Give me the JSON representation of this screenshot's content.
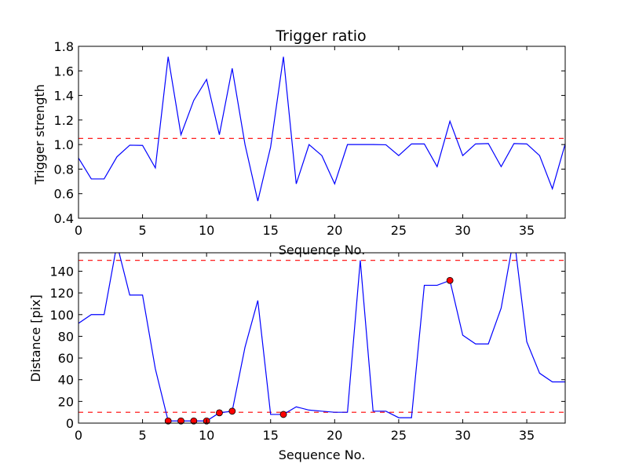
{
  "chart_data": [
    {
      "type": "line",
      "title": "Trigger ratio",
      "xlabel": "Sequence No.",
      "ylabel": "Trigger strength",
      "xlim": [
        0,
        38
      ],
      "ylim": [
        0.4,
        1.8
      ],
      "xticks": [
        0,
        5,
        10,
        15,
        20,
        25,
        30,
        35
      ],
      "yticks": [
        0.4,
        0.6,
        0.8,
        1.0,
        1.2,
        1.4,
        1.6,
        1.8
      ],
      "xtick_labels": [
        "0",
        "5",
        "10",
        "15",
        "20",
        "25",
        "30",
        "35"
      ],
      "ytick_labels": [
        "0.4",
        "0.6",
        "0.8",
        "1.0",
        "1.2",
        "1.4",
        "1.6",
        "1.8"
      ],
      "series": [
        {
          "color": "#0000ff",
          "x": [
            0,
            1,
            2,
            3,
            4,
            5,
            6,
            7,
            8,
            9,
            10,
            11,
            12,
            13,
            14,
            15,
            16,
            17,
            18,
            19,
            20,
            21,
            22,
            23,
            24,
            25,
            26,
            27,
            28,
            29,
            30,
            31,
            32,
            33,
            34,
            35,
            36,
            37,
            38
          ],
          "y": [
            0.89,
            0.72,
            0.72,
            0.9,
            0.995,
            0.993,
            0.81,
            1.715,
            1.08,
            1.36,
            1.53,
            1.08,
            1.62,
            1.0,
            0.54,
            0.98,
            1.715,
            0.68,
            1.0,
            0.91,
            0.68,
            1.0,
            1.0,
            1.0,
            0.998,
            0.91,
            1.005,
            1.005,
            0.82,
            1.19,
            0.91,
            1.005,
            1.008,
            0.82,
            1.008,
            1.005,
            0.91,
            0.64,
            1.005
          ]
        }
      ],
      "reference_lines": [
        {
          "y": 1.05,
          "color": "#ff0000",
          "style": "dashed"
        }
      ],
      "grid": false
    },
    {
      "type": "line",
      "title": "",
      "xlabel": "Sequence No.",
      "ylabel": "Distance [pix]",
      "xlim": [
        0,
        38
      ],
      "ylim": [
        0,
        157
      ],
      "xticks": [
        0,
        5,
        10,
        15,
        20,
        25,
        30,
        35
      ],
      "yticks": [
        0,
        20,
        40,
        60,
        80,
        100,
        120,
        140
      ],
      "xtick_labels": [
        "0",
        "5",
        "10",
        "15",
        "20",
        "25",
        "30",
        "35"
      ],
      "ytick_labels": [
        "0",
        "20",
        "40",
        "60",
        "80",
        "100",
        "120",
        "140"
      ],
      "series": [
        {
          "color": "#0000ff",
          "x": [
            0,
            1,
            2,
            3,
            4,
            5,
            6,
            7,
            8,
            9,
            10,
            11,
            12,
            13,
            14,
            15,
            16,
            17,
            18,
            19,
            20,
            21,
            22,
            23,
            24,
            25,
            26,
            27,
            28,
            29,
            30,
            31,
            32,
            33,
            34,
            35,
            36,
            37,
            38
          ],
          "y": [
            92,
            100,
            100,
            165,
            118,
            118,
            50,
            2,
            2,
            2,
            2,
            9.5,
            11,
            70,
            113,
            8,
            8,
            15,
            12,
            11,
            10,
            10,
            150,
            11,
            11,
            5,
            5,
            127,
            127,
            131.5,
            81,
            73,
            73,
            106,
            172,
            75,
            46,
            38,
            38
          ]
        }
      ],
      "markers": {
        "color": "#ff0000",
        "edge": "#000000",
        "points": [
          {
            "x": 7,
            "y": 2
          },
          {
            "x": 8,
            "y": 2
          },
          {
            "x": 9,
            "y": 2
          },
          {
            "x": 10,
            "y": 2
          },
          {
            "x": 11,
            "y": 9.5
          },
          {
            "x": 12,
            "y": 11
          },
          {
            "x": 16,
            "y": 8
          },
          {
            "x": 29,
            "y": 131.5
          }
        ]
      },
      "reference_lines": [
        {
          "y": 150,
          "color": "#ff0000",
          "style": "dashed"
        },
        {
          "y": 10,
          "color": "#ff0000",
          "style": "dashed"
        }
      ],
      "grid": false
    }
  ]
}
